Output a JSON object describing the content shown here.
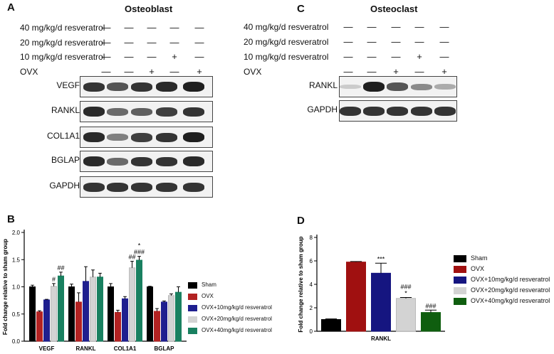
{
  "panelA": {
    "letter": "A",
    "title": "Osteoblast",
    "treatments": [
      {
        "label": "40 mg/kg/d resveratrol",
        "signs": [
          "—",
          "—",
          "—",
          "—",
          "—"
        ]
      },
      {
        "label": "20 mg/kg/d resveratrol",
        "signs": [
          "—",
          "—",
          "—",
          "—",
          "—"
        ]
      },
      {
        "label": "10 mg/kg/d resveratrol",
        "signs": [
          "—",
          "—",
          "—",
          "+",
          "—"
        ]
      },
      {
        "label": "OVX",
        "signs": [
          "—",
          "—",
          "+",
          "—",
          "+"
        ]
      }
    ],
    "blots": [
      {
        "label": "VEGF",
        "intensity": [
          0.85,
          0.7,
          0.85,
          0.9,
          0.95
        ]
      },
      {
        "label": "RANKL",
        "intensity": [
          0.9,
          0.6,
          0.65,
          0.8,
          0.85
        ]
      },
      {
        "label": "COL1A1",
        "intensity": [
          0.9,
          0.5,
          0.8,
          0.85,
          0.95
        ]
      },
      {
        "label": "BGLAP",
        "intensity": [
          0.9,
          0.6,
          0.85,
          0.85,
          0.9
        ]
      },
      {
        "label": "GAPDH",
        "intensity": [
          0.85,
          0.85,
          0.85,
          0.85,
          0.85
        ]
      }
    ]
  },
  "panelC": {
    "letter": "C",
    "title": "Osteoclast",
    "treatments": [
      {
        "label": "40 mg/kg/d resveratrol",
        "signs": [
          "—",
          "—",
          "—",
          "—",
          "—"
        ]
      },
      {
        "label": "20 mg/kg/d resveratrol",
        "signs": [
          "—",
          "—",
          "—",
          "—",
          "—"
        ]
      },
      {
        "label": "10 mg/kg/d resveratrol",
        "signs": [
          "—",
          "—",
          "—",
          "+",
          "—"
        ]
      },
      {
        "label": "OVX",
        "signs": [
          "—",
          "—",
          "+",
          "—",
          "+"
        ]
      }
    ],
    "blots": [
      {
        "label": "RANKL",
        "intensity": [
          0.15,
          0.95,
          0.7,
          0.45,
          0.3
        ]
      },
      {
        "label": "GAPDH",
        "intensity": [
          0.85,
          0.85,
          0.85,
          0.85,
          0.85
        ]
      }
    ]
  },
  "panelB": {
    "letter": "B"
  },
  "panelD": {
    "letter": "D"
  },
  "chart_data": [
    {
      "type": "bar",
      "panel": "B",
      "ylabel": "Fold change relative to sham group",
      "ylim": [
        0,
        2.0
      ],
      "yticks": [
        "0.0",
        "0.5",
        "1.0",
        "1.5",
        "2.0"
      ],
      "categories": [
        "VEGF",
        "RANKL",
        "COL1A1",
        "BGLAP"
      ],
      "series": [
        {
          "name": "Sham",
          "color": "#000000",
          "values": [
            1.0,
            1.0,
            1.0,
            1.0
          ],
          "errors": [
            0.03,
            0.05,
            0.06,
            0.01
          ]
        },
        {
          "name": "OVX",
          "color": "#b22222",
          "values": [
            0.54,
            0.72,
            0.53,
            0.55
          ],
          "errors": [
            0.02,
            0.17,
            0.04,
            0.05
          ]
        },
        {
          "name": "OVX+10mg/kg/d resveratrol",
          "color": "#1f1f8f",
          "values": [
            0.76,
            1.1,
            0.78,
            0.72
          ],
          "errors": [
            0.01,
            0.27,
            0.04,
            0.02
          ]
        },
        {
          "name": "OVX+20mg/kg/d resveratrol",
          "color": "#d3d3d3",
          "values": [
            1.01,
            1.18,
            1.35,
            0.84
          ],
          "errors": [
            0.05,
            0.13,
            0.12,
            0.03
          ]
        },
        {
          "name": "OVX+40mg/kg/d resveratrol",
          "color": "#198060",
          "values": [
            1.2,
            1.18,
            1.49,
            0.9
          ],
          "errors": [
            0.07,
            0.07,
            0.07,
            0.1
          ]
        }
      ],
      "annotations": [
        {
          "category": "VEGF",
          "series": 3,
          "text": "#"
        },
        {
          "category": "VEGF",
          "series": 4,
          "text": "##"
        },
        {
          "category": "COL1A1",
          "series": 3,
          "text": "##"
        },
        {
          "category": "COL1A1",
          "series": 4,
          "text": "###"
        },
        {
          "category": "COL1A1",
          "series": 4,
          "text": "*"
        }
      ],
      "legend_position": "right"
    },
    {
      "type": "bar",
      "panel": "D",
      "ylabel": "Fold change relative to sham group",
      "ylim": [
        0,
        8
      ],
      "yticks": [
        "0",
        "2",
        "4",
        "6",
        "8"
      ],
      "categories": [
        "RANKL"
      ],
      "series": [
        {
          "name": "Sham",
          "color": "#000000",
          "values": [
            1.0
          ],
          "errors": [
            0.05
          ]
        },
        {
          "name": "OVX",
          "color": "#a01010",
          "values": [
            5.9
          ],
          "errors": [
            0.05
          ]
        },
        {
          "name": "OVX+10mg/kg/d resveratrol",
          "color": "#151580",
          "values": [
            4.95
          ],
          "errors": [
            0.85
          ]
        },
        {
          "name": "OVX+20mg/kg/d resveratrol",
          "color": "#d3d3d3",
          "values": [
            2.8
          ],
          "errors": [
            0.08
          ]
        },
        {
          "name": "OVX+40mg/kg/d resveratrol",
          "color": "#0f5e0f",
          "values": [
            1.6
          ],
          "errors": [
            0.2
          ]
        }
      ],
      "annotations": [
        {
          "series": 2,
          "text": "***"
        },
        {
          "series": 3,
          "text": "*"
        },
        {
          "series": 3,
          "text": "###"
        },
        {
          "series": 4,
          "text": "###"
        }
      ],
      "legend_position": "right"
    }
  ]
}
